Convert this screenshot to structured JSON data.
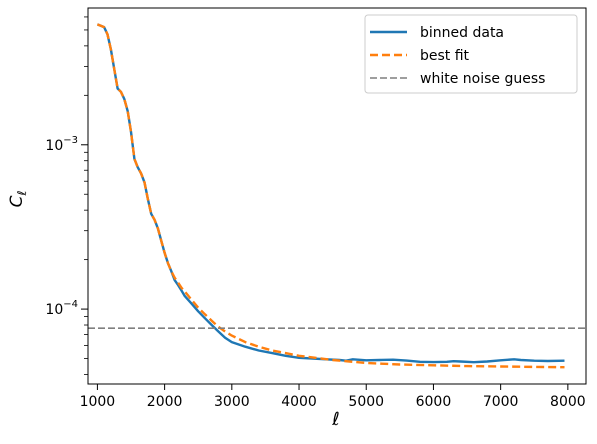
{
  "chart_data": {
    "type": "line",
    "title": "",
    "xlabel": "ℓ",
    "ylabel": "C",
    "ylabel_subscript": "ℓ",
    "xlim": [
      860,
      8270
    ],
    "ylim": [
      3.5e-05,
      0.0068
    ],
    "yscale": "log",
    "grid": false,
    "legend_position": "top-right",
    "x_ticks": [
      {
        "value": 1000,
        "label": "1000"
      },
      {
        "value": 2000,
        "label": "2000"
      },
      {
        "value": 3000,
        "label": "3000"
      },
      {
        "value": 4000,
        "label": "4000"
      },
      {
        "value": 5000,
        "label": "5000"
      },
      {
        "value": 6000,
        "label": "6000"
      },
      {
        "value": 7000,
        "label": "7000"
      },
      {
        "value": 8000,
        "label": "8000"
      }
    ],
    "y_ticks": [
      {
        "value": 0.0001,
        "base": "10",
        "exp": "−4"
      },
      {
        "value": 0.001,
        "base": "10",
        "exp": "−3"
      }
    ],
    "series": [
      {
        "name": "binned data",
        "color": "#1f77b4",
        "style": "solid",
        "x": [
          1000,
          1100,
          1150,
          1200,
          1250,
          1300,
          1350,
          1400,
          1450,
          1500,
          1550,
          1600,
          1650,
          1700,
          1750,
          1800,
          1850,
          1900,
          1950,
          2000,
          2050,
          2100,
          2150,
          2200,
          2250,
          2300,
          2400,
          2500,
          2600,
          2700,
          2800,
          2900,
          3000,
          3200,
          3400,
          3600,
          3800,
          4000,
          4200,
          4400,
          4600,
          4700,
          4800,
          5000,
          5200,
          5400,
          5600,
          5800,
          6000,
          6200,
          6300,
          6400,
          6600,
          6800,
          7000,
          7200,
          7300,
          7500,
          7700,
          7950
        ],
        "y": [
          0.0054,
          0.0052,
          0.0047,
          0.0038,
          0.0029,
          0.0022,
          0.0021,
          0.0019,
          0.0016,
          0.0012,
          0.00082,
          0.00073,
          0.00067,
          0.00059,
          0.00047,
          0.00038,
          0.00035,
          0.00031,
          0.00026,
          0.00022,
          0.00019,
          0.00017,
          0.00015,
          0.00014,
          0.00013,
          0.00012,
          0.000108,
          9.7e-05,
          8.8e-05,
          8e-05,
          7.3e-05,
          6.7e-05,
          6.3e-05,
          5.9e-05,
          5.6e-05,
          5.4e-05,
          5.2e-05,
          5.05e-05,
          5e-05,
          4.95e-05,
          4.9e-05,
          4.85e-05,
          4.95e-05,
          4.88e-05,
          4.9e-05,
          4.92e-05,
          4.86e-05,
          4.78e-05,
          4.76e-05,
          4.78e-05,
          4.82e-05,
          4.8e-05,
          4.75e-05,
          4.8e-05,
          4.88e-05,
          4.95e-05,
          4.9e-05,
          4.85e-05,
          4.83e-05,
          4.85e-05
        ]
      },
      {
        "name": "best fit",
        "color": "#ff7f0e",
        "style": "dashed",
        "x": [
          1000,
          1100,
          1150,
          1200,
          1250,
          1300,
          1350,
          1400,
          1450,
          1500,
          1550,
          1600,
          1650,
          1700,
          1750,
          1800,
          1850,
          1900,
          1950,
          2000,
          2050,
          2100,
          2150,
          2200,
          2250,
          2300,
          2400,
          2500,
          2600,
          2700,
          2800,
          2900,
          3000,
          3200,
          3400,
          3600,
          3800,
          4000,
          4500,
          5000,
          5500,
          6000,
          6500,
          7000,
          7500,
          7950
        ],
        "y": [
          0.0054,
          0.0052,
          0.0047,
          0.0038,
          0.0029,
          0.0022,
          0.0021,
          0.0019,
          0.0016,
          0.0012,
          0.00082,
          0.00073,
          0.00067,
          0.00059,
          0.00047,
          0.00038,
          0.00035,
          0.00031,
          0.00026,
          0.00022,
          0.00019,
          0.00017,
          0.000155,
          0.000145,
          0.000135,
          0.000128,
          0.000114,
          0.000102,
          9.3e-05,
          8.5e-05,
          7.8e-05,
          7.3e-05,
          6.9e-05,
          6.3e-05,
          5.9e-05,
          5.6e-05,
          5.4e-05,
          5.2e-05,
          4.9e-05,
          4.7e-05,
          4.6e-05,
          4.55e-05,
          4.5e-05,
          4.47e-05,
          4.45e-05,
          4.43e-05
        ]
      },
      {
        "name": "white noise guess",
        "color": "#7f7f7f",
        "style": "dashed",
        "type": "hline",
        "y": 7.65e-05
      }
    ]
  }
}
